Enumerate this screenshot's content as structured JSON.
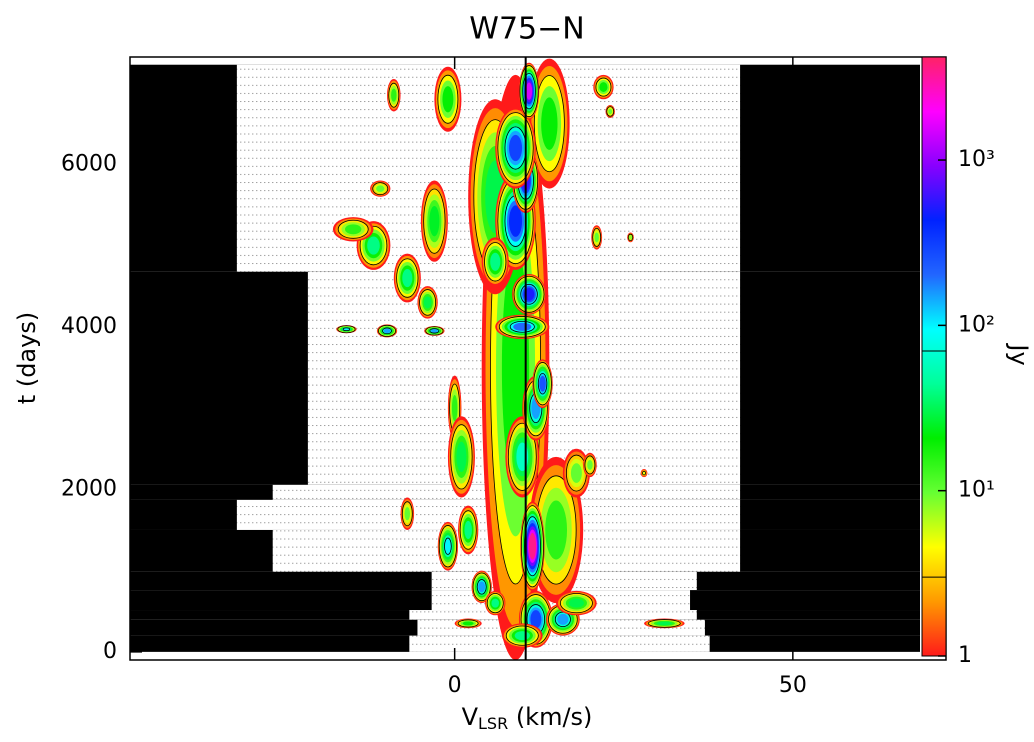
{
  "chart_data": {
    "type": "heatmap",
    "title": "W75−N",
    "xlabel": [
      "V",
      "LSR",
      " (km/s)"
    ],
    "ylabel": "t (days)",
    "clabel": "Jy",
    "xlim": [
      -48,
      68.8
    ],
    "ylim": [
      -100,
      7320
    ],
    "xticks": [
      0,
      50
    ],
    "yticks": [
      0,
      2000,
      4000,
      6000
    ],
    "clim": [
      1,
      4200
    ],
    "cscale": "log",
    "cticks": [
      1,
      {
        "value": 10,
        "label": "10¹"
      },
      {
        "value": 100,
        "label": "10²"
      },
      {
        "value": 1000,
        "label": "10³"
      }
    ],
    "contours": [
      3,
      70
    ],
    "colormap": [
      "#ff1a1a",
      "#ff9900",
      "#ffff00",
      "#66ff33",
      "#00ee00",
      "#00ff99",
      "#00ffff",
      "#2266ff",
      "#0022ff",
      "#8800ff",
      "#ff00ff",
      "#ff2266"
    ],
    "reference_velocity": 10.5,
    "coverage": [
      {
        "t": [
          4677,
          7225
        ],
        "v": [
          -32.2,
          42.2
        ]
      },
      {
        "t": [
          2055,
          4677
        ],
        "v": [
          -21.7,
          42.2
        ]
      },
      {
        "t": [
          1870,
          2055
        ],
        "v": [
          -26.9,
          42.2
        ]
      },
      {
        "t": [
          1500,
          1870
        ],
        "v": [
          -32.2,
          42.2
        ]
      },
      {
        "t": [
          985,
          1500
        ],
        "v": [
          -26.9,
          42.2
        ]
      },
      {
        "t": [
          760,
          985
        ],
        "v": [
          -3.4,
          35.8
        ]
      },
      {
        "t": [
          515,
          760
        ],
        "v": [
          -3.4,
          34.8
        ]
      },
      {
        "t": [
          395,
          515
        ],
        "v": [
          -6.7,
          35.8
        ]
      },
      {
        "t": [
          200,
          395
        ],
        "v": [
          -5.5,
          37
        ]
      },
      {
        "t": [
          0,
          200
        ],
        "v": [
          -6.7,
          37.7
        ]
      }
    ],
    "features": [
      {
        "v": 9,
        "t": 3500,
        "dv": 5,
        "dt": 3600,
        "flux": 20
      },
      {
        "v": 6,
        "t": 5600,
        "dv": 4,
        "dt": 1200,
        "flux": 30
      },
      {
        "v": 15,
        "t": 1500,
        "dv": 4,
        "dt": 900,
        "flux": 15
      },
      {
        "v": 14,
        "t": 6500,
        "dv": 3,
        "dt": 800,
        "flux": 20
      },
      {
        "v": 10,
        "t": 2400,
        "dv": 2.5,
        "dt": 500,
        "flux": 60
      },
      {
        "v": 12,
        "t": 3000,
        "dv": 2,
        "dt": 400,
        "flux": 150
      },
      {
        "v": 13,
        "t": 3300,
        "dv": 1.5,
        "dt": 300,
        "flux": 250
      },
      {
        "v": 10,
        "t": 4000,
        "dv": 4,
        "dt": 150,
        "flux": 200
      },
      {
        "v": 11,
        "t": 4400,
        "dv": 2.5,
        "dt": 250,
        "flux": 500
      },
      {
        "v": 9,
        "t": 5300,
        "dv": 3,
        "dt": 600,
        "flux": 400
      },
      {
        "v": 10.5,
        "t": 5800,
        "dv": 2,
        "dt": 400,
        "flux": 600
      },
      {
        "v": 9,
        "t": 6200,
        "dv": 3,
        "dt": 500,
        "flux": 300
      },
      {
        "v": 11,
        "t": 6900,
        "dv": 1.5,
        "dt": 350,
        "flux": 1500
      },
      {
        "v": 12,
        "t": 400,
        "dv": 2.5,
        "dt": 350,
        "flux": 300
      },
      {
        "v": 11.5,
        "t": 1300,
        "dv": 1.8,
        "dt": 550,
        "flux": 3500
      },
      {
        "v": 18,
        "t": 2200,
        "dv": 2,
        "dt": 300,
        "flux": 10
      },
      {
        "v": 20,
        "t": 2300,
        "dv": 1,
        "dt": 150,
        "flux": 10
      },
      {
        "v": -10,
        "t": 3950,
        "dv": 1.5,
        "dt": 80,
        "flux": 150
      },
      {
        "v": -16,
        "t": 3970,
        "dv": 1.5,
        "dt": 50,
        "flux": 100
      },
      {
        "v": -3,
        "t": 3950,
        "dv": 1.5,
        "dt": 60,
        "flux": 150
      },
      {
        "v": -12,
        "t": 5000,
        "dv": 2.5,
        "dt": 300,
        "flux": 40
      },
      {
        "v": -7,
        "t": 4600,
        "dv": 2,
        "dt": 300,
        "flux": 40
      },
      {
        "v": -4,
        "t": 4300,
        "dv": 1.5,
        "dt": 200,
        "flux": 30
      },
      {
        "v": -15,
        "t": 5200,
        "dv": 3,
        "dt": 150,
        "flux": 15
      },
      {
        "v": -11,
        "t": 5700,
        "dv": 1.5,
        "dt": 100,
        "flux": 10
      },
      {
        "v": -9,
        "t": 6850,
        "dv": 1,
        "dt": 200,
        "flux": 15
      },
      {
        "v": -1,
        "t": 6800,
        "dv": 2,
        "dt": 400,
        "flux": 20
      },
      {
        "v": -3,
        "t": 5300,
        "dv": 2,
        "dt": 500,
        "flux": 25
      },
      {
        "v": 0,
        "t": 3000,
        "dv": 1,
        "dt": 400,
        "flux": 15
      },
      {
        "v": 1,
        "t": 2400,
        "dv": 2,
        "dt": 500,
        "flux": 30
      },
      {
        "v": 2,
        "t": 1500,
        "dv": 1.5,
        "dt": 300,
        "flux": 40
      },
      {
        "v": -7,
        "t": 1700,
        "dv": 1,
        "dt": 200,
        "flux": 10
      },
      {
        "v": -1,
        "t": 1300,
        "dv": 1.5,
        "dt": 300,
        "flux": 100
      },
      {
        "v": 4,
        "t": 800,
        "dv": 1.5,
        "dt": 200,
        "flux": 150
      },
      {
        "v": 6,
        "t": 600,
        "dv": 1.5,
        "dt": 150,
        "flux": 40
      },
      {
        "v": 2,
        "t": 350,
        "dv": 2,
        "dt": 60,
        "flux": 20
      },
      {
        "v": 10,
        "t": 200,
        "dv": 3,
        "dt": 150,
        "flux": 40
      },
      {
        "v": 16,
        "t": 400,
        "dv": 2.5,
        "dt": 200,
        "flux": 150
      },
      {
        "v": 18,
        "t": 600,
        "dv": 3,
        "dt": 150,
        "flux": 30
      },
      {
        "v": 31,
        "t": 350,
        "dv": 3,
        "dt": 60,
        "flux": 30
      },
      {
        "v": 22,
        "t": 6950,
        "dv": 1.5,
        "dt": 150,
        "flux": 20
      },
      {
        "v": 23,
        "t": 6650,
        "dv": 0.7,
        "dt": 80,
        "flux": 10
      },
      {
        "v": 21,
        "t": 5100,
        "dv": 0.8,
        "dt": 150,
        "flux": 10
      },
      {
        "v": 26,
        "t": 5100,
        "dv": 0.5,
        "dt": 60,
        "flux": 8
      },
      {
        "v": 28,
        "t": 2200,
        "dv": 0.5,
        "dt": 50,
        "flux": 5
      },
      {
        "v": 6,
        "t": 4800,
        "dv": 2,
        "dt": 300,
        "flux": 40
      }
    ]
  }
}
